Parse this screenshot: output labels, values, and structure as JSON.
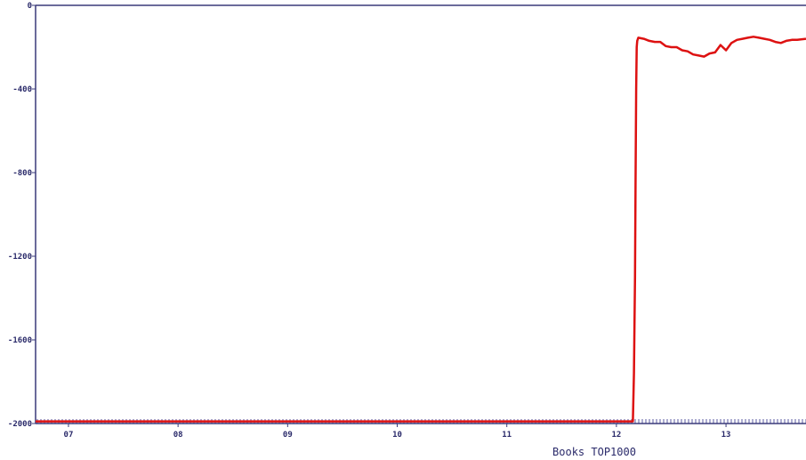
{
  "chart_data": {
    "type": "line",
    "title": "",
    "xlabel": "Books TOP1000",
    "ylabel": "",
    "xlim": [
      6.7,
      13.73
    ],
    "ylim": [
      -2000,
      0
    ],
    "yticks": [
      {
        "value": 0,
        "label": "0"
      },
      {
        "value": -400,
        "label": "-400"
      },
      {
        "value": -800,
        "label": "-800"
      },
      {
        "value": -1200,
        "label": "-1200"
      },
      {
        "value": -1600,
        "label": "-1600"
      },
      {
        "value": -2000,
        "label": "-2000"
      }
    ],
    "xticks": [
      {
        "value": 7,
        "label": "07"
      },
      {
        "value": 8,
        "label": "08"
      },
      {
        "value": 9,
        "label": "09"
      },
      {
        "value": 10,
        "label": "10"
      },
      {
        "value": 11,
        "label": "11"
      },
      {
        "value": 12,
        "label": "12"
      },
      {
        "value": 13,
        "label": "13"
      }
    ],
    "grid": false,
    "colors": {
      "series": "#dd1111",
      "axis": "#3a3a7a",
      "baseline_marks": "#5a5aa0"
    },
    "series": [
      {
        "x": [
          6.7,
          12.15,
          12.16,
          12.17,
          12.175,
          12.18,
          12.185,
          12.19,
          12.2,
          12.25,
          12.3,
          12.35,
          12.4,
          12.45,
          12.5,
          12.55,
          12.6,
          12.65,
          12.7,
          12.75,
          12.8,
          12.85,
          12.9,
          12.95,
          13.0,
          13.05,
          13.1,
          13.15,
          13.2,
          13.25,
          13.3,
          13.35,
          13.4,
          13.45,
          13.5,
          13.55,
          13.6,
          13.65,
          13.73
        ],
        "y": [
          -1990,
          -1990,
          -1760,
          -1300,
          -850,
          -400,
          -200,
          -170,
          -155,
          -160,
          -170,
          -175,
          -175,
          -195,
          -200,
          -200,
          -215,
          -220,
          -235,
          -240,
          -245,
          -230,
          -225,
          -190,
          -215,
          -180,
          -165,
          -160,
          -155,
          -150,
          -155,
          -160,
          -165,
          -175,
          -180,
          -170,
          -165,
          -165,
          -160
        ]
      }
    ]
  }
}
